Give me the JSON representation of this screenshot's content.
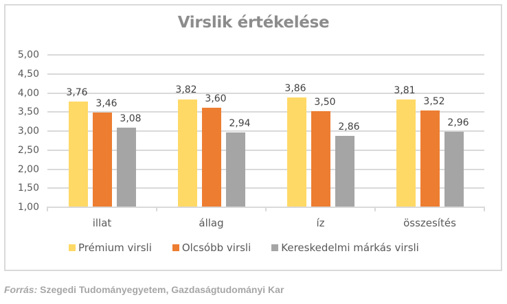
{
  "chart_data": {
    "type": "bar",
    "title": "Virslik értékelése",
    "xlabel": "",
    "ylabel": "",
    "categories": [
      "illat",
      "állag",
      "íz",
      "összesítés"
    ],
    "series": [
      {
        "name": "Prémium virsli",
        "color": "#ffd966",
        "values": [
          3.76,
          3.82,
          3.86,
          3.81
        ],
        "labels": [
          "3,76",
          "3,82",
          "3,86",
          "3,81"
        ]
      },
      {
        "name": "Olcsóbb virsli",
        "color": "#ed7d31",
        "values": [
          3.46,
          3.6,
          3.5,
          3.52
        ],
        "labels": [
          "3,46",
          "3,60",
          "3,50",
          "3,52"
        ]
      },
      {
        "name": "Kereskedelmi márkás virsli",
        "color": "#a5a5a5",
        "values": [
          3.08,
          2.94,
          2.86,
          2.96
        ],
        "labels": [
          "3,08",
          "2,94",
          "2,86",
          "2,96"
        ]
      }
    ],
    "ylim": [
      1.0,
      5.0
    ],
    "yticks": [
      "5,00",
      "4,50",
      "4,00",
      "3,50",
      "3,00",
      "2,50",
      "2,00",
      "1,50",
      "1,00"
    ],
    "grid": true,
    "legend_position": "bottom",
    "data_labels": true
  },
  "source": {
    "prefix": "Forrás:",
    "text": " Szegedi Tudományegyetem, Gazdaságtudományi Kar"
  }
}
